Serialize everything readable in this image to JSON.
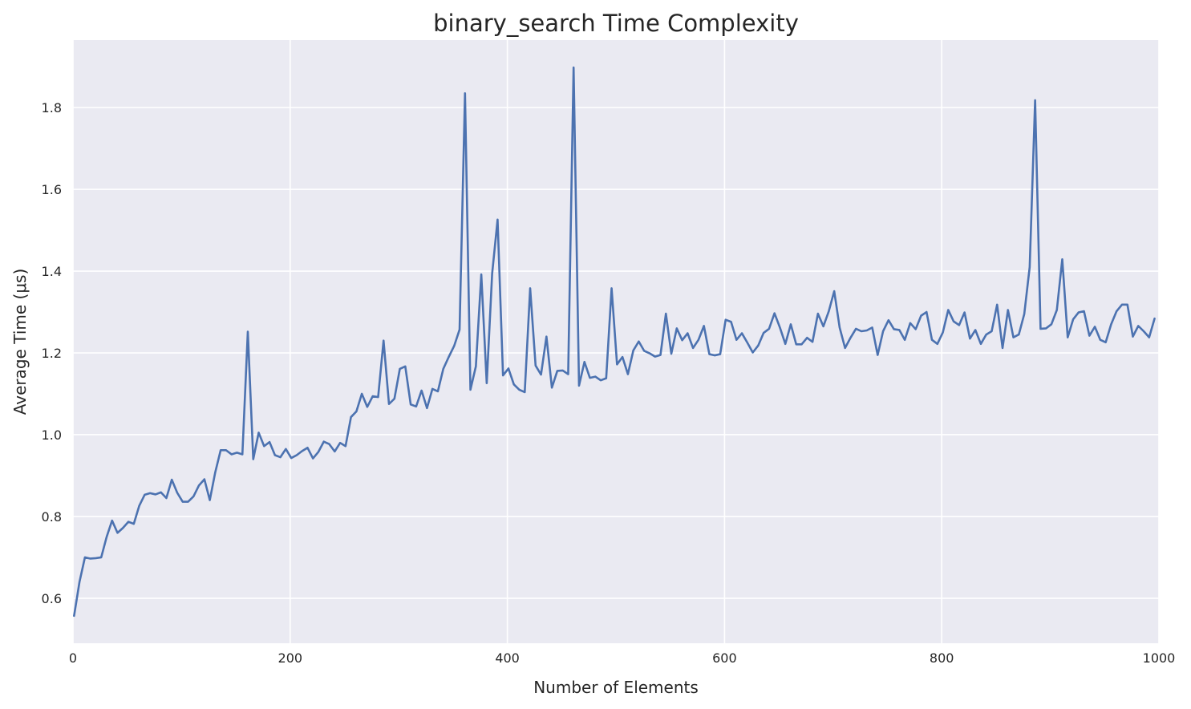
{
  "chart_data": {
    "type": "line",
    "title": "binary_search Time Complexity",
    "xlabel": "Number of Elements",
    "ylabel": "Average Time (μs)",
    "xlim": [
      0,
      1000
    ],
    "ylim": [
      0.49,
      1.965
    ],
    "xticks": [
      0,
      200,
      400,
      600,
      800,
      1000
    ],
    "yticks": [
      0.6,
      0.8,
      1.0,
      1.2,
      1.4,
      1.6,
      1.8
    ],
    "ytick_labels": [
      "0.6",
      "0.8",
      "1.0",
      "1.2",
      "1.4",
      "1.6",
      "1.8"
    ],
    "grid": true,
    "background": "#eaeaf2",
    "line_color": "#4c72b0",
    "series": [
      {
        "x": [
          1,
          6,
          11,
          16,
          21,
          26,
          31,
          36,
          41,
          46,
          51,
          56,
          61,
          66,
          71,
          76,
          81,
          86,
          91,
          96,
          101,
          106,
          111,
          116,
          121,
          126,
          131,
          136,
          141,
          146,
          151,
          156,
          161,
          166,
          171,
          176,
          181,
          186,
          191,
          196,
          201,
          206,
          211,
          216,
          221,
          226,
          231,
          236,
          241,
          246,
          251,
          256,
          261,
          266,
          271,
          276,
          281,
          286,
          291,
          296,
          301,
          306,
          311,
          316,
          321,
          326,
          331,
          336,
          341,
          346,
          351,
          356,
          361,
          366,
          371,
          376,
          381,
          386,
          391,
          396,
          401,
          406,
          411,
          416,
          421,
          426,
          431,
          436,
          441,
          446,
          451,
          456,
          461,
          466,
          471,
          476,
          481,
          486,
          491,
          496,
          501,
          506,
          511,
          516,
          521,
          526,
          531,
          536,
          541,
          546,
          551,
          556,
          561,
          566,
          571,
          576,
          581,
          586,
          591,
          596,
          601,
          606,
          611,
          616,
          621,
          626,
          631,
          636,
          641,
          646,
          651,
          656,
          661,
          666,
          671,
          676,
          681,
          686,
          691,
          696,
          701,
          706,
          711,
          716,
          721,
          726,
          731,
          736,
          741,
          746,
          751,
          756,
          761,
          766,
          771,
          776,
          781,
          786,
          791,
          796,
          801,
          806,
          811,
          816,
          821,
          826,
          831,
          836,
          841,
          846,
          851,
          856,
          861,
          866,
          871,
          876,
          881,
          886,
          891,
          896,
          901,
          906,
          911,
          916,
          921,
          926,
          931,
          936,
          941,
          946,
          951,
          956,
          961,
          966,
          971,
          976,
          981,
          986,
          991,
          996
        ],
        "values": [
          0.557,
          0.64,
          0.7,
          0.697,
          0.698,
          0.7,
          0.75,
          0.79,
          0.76,
          0.772,
          0.787,
          0.782,
          0.826,
          0.853,
          0.857,
          0.854,
          0.859,
          0.845,
          0.89,
          0.858,
          0.836,
          0.836,
          0.849,
          0.876,
          0.891,
          0.84,
          0.908,
          0.962,
          0.962,
          0.952,
          0.956,
          0.952,
          1.252,
          0.94,
          1.005,
          0.972,
          0.982,
          0.95,
          0.945,
          0.965,
          0.943,
          0.95,
          0.96,
          0.968,
          0.942,
          0.958,
          0.983,
          0.977,
          0.959,
          0.98,
          0.972,
          1.043,
          1.057,
          1.1,
          1.068,
          1.094,
          1.092,
          1.23,
          1.075,
          1.088,
          1.161,
          1.167,
          1.074,
          1.069,
          1.108,
          1.065,
          1.112,
          1.106,
          1.161,
          1.19,
          1.217,
          1.257,
          1.835,
          1.11,
          1.167,
          1.392,
          1.126,
          1.394,
          1.526,
          1.145,
          1.162,
          1.123,
          1.11,
          1.104,
          1.358,
          1.169,
          1.147,
          1.24,
          1.115,
          1.156,
          1.157,
          1.148,
          1.898,
          1.12,
          1.178,
          1.139,
          1.142,
          1.133,
          1.138,
          1.358,
          1.172,
          1.19,
          1.148,
          1.206,
          1.228,
          1.205,
          1.199,
          1.191,
          1.195,
          1.296,
          1.198,
          1.26,
          1.231,
          1.248,
          1.212,
          1.232,
          1.266,
          1.197,
          1.194,
          1.197,
          1.281,
          1.276,
          1.232,
          1.248,
          1.225,
          1.201,
          1.218,
          1.249,
          1.259,
          1.297,
          1.262,
          1.222,
          1.27,
          1.221,
          1.221,
          1.237,
          1.227,
          1.296,
          1.265,
          1.302,
          1.351,
          1.262,
          1.212,
          1.237,
          1.259,
          1.253,
          1.255,
          1.262,
          1.195,
          1.253,
          1.28,
          1.258,
          1.256,
          1.232,
          1.273,
          1.258,
          1.291,
          1.3,
          1.232,
          1.222,
          1.25,
          1.305,
          1.277,
          1.268,
          1.299,
          1.235,
          1.256,
          1.222,
          1.245,
          1.253,
          1.318,
          1.212,
          1.305,
          1.238,
          1.245,
          1.295,
          1.41,
          1.818,
          1.259,
          1.26,
          1.27,
          1.305,
          1.429,
          1.238,
          1.282,
          1.299,
          1.302,
          1.242,
          1.264,
          1.232,
          1.226,
          1.27,
          1.302,
          1.318,
          1.318,
          1.24,
          1.266,
          1.253,
          1.238,
          1.284
        ]
      }
    ]
  }
}
